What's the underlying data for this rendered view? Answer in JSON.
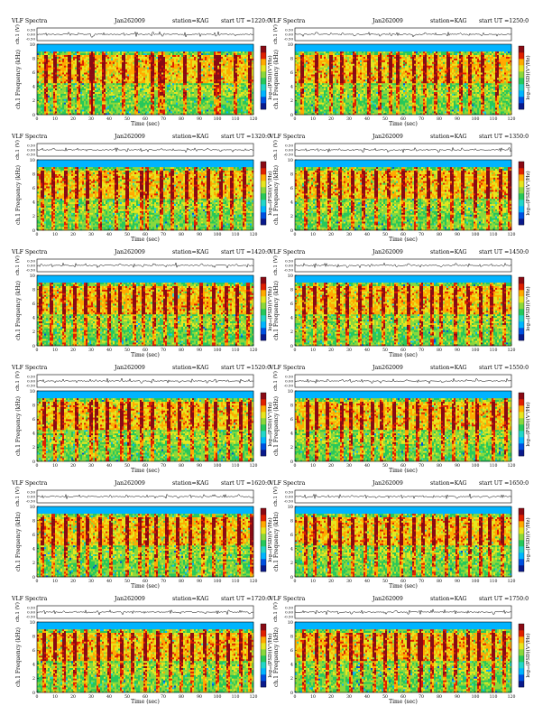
{
  "figure": {
    "layout": "6 rows x 2 columns of VLF spectrogram panels",
    "colormap": [
      "#0a1a8c",
      "#0050e0",
      "#00b4ff",
      "#23d6c8",
      "#27c85a",
      "#8ad83c",
      "#e6e61e",
      "#ffaa00",
      "#e02000",
      "#8a0a14"
    ]
  },
  "chart_data": [
    {
      "type": "heatmap",
      "title_left": "VLF Spectra",
      "date": "Jan262009",
      "station": "station=KAG",
      "start": "start UT =1220:0",
      "top_ylabel": "ch.1 (V)",
      "top_yticks": [
        "0.50",
        "0.00",
        "-0.50"
      ],
      "ylabel": "ch.1 Frequency (kHz)",
      "yticks": [
        0,
        2,
        4,
        6,
        8,
        10
      ],
      "ylim": [
        0,
        10
      ],
      "xlabel": "Time (sec)",
      "xticks": [
        0,
        10,
        20,
        30,
        40,
        50,
        60,
        70,
        80,
        90,
        100,
        110,
        120
      ],
      "xlim": [
        0,
        120
      ],
      "colorbar_label": "log₁₀(PSD)(V²/Hz)",
      "bursts": [
        5,
        10,
        18,
        23,
        30,
        31,
        37,
        48,
        55,
        64,
        68,
        70,
        82,
        90,
        99,
        101,
        110,
        118
      ]
    },
    {
      "type": "heatmap",
      "title_left": "VLF Spectra",
      "date": "Jan262009",
      "station": "station=KAG",
      "start": "start UT =1250:0",
      "top_ylabel": "ch.1 (V)",
      "top_yticks": [
        "0.50",
        "0.00",
        "-0.50"
      ],
      "ylabel": "ch.1 Frequency (kHz)",
      "yticks": [
        0,
        2,
        4,
        6,
        8,
        10
      ],
      "ylim": [
        0,
        10
      ],
      "xlabel": "Time (sec)",
      "xticks": [
        0,
        10,
        20,
        30,
        40,
        50,
        60,
        70,
        80,
        90,
        100,
        110,
        120
      ],
      "xlim": [
        0,
        120
      ],
      "colorbar_label": "log₁₀(PSD)(V²/Hz)",
      "bursts": [
        4,
        12,
        20,
        26,
        33,
        41,
        47,
        53,
        57,
        66,
        72,
        78,
        85,
        92,
        97,
        104,
        112
      ]
    },
    {
      "type": "heatmap",
      "title_left": "VLF Spectra",
      "date": "Jan262009",
      "station": "station=KAG",
      "start": "start UT =1320:0",
      "top_ylabel": "ch.1 (V)",
      "top_yticks": [
        "0.50",
        "0.00",
        "-0.50"
      ],
      "ylabel": "ch.1 Frequency (kHz)",
      "yticks": [
        0,
        2,
        4,
        6,
        8,
        10
      ],
      "ylim": [
        0,
        10
      ],
      "xlabel": "Time (sec)",
      "xticks": [
        0,
        10,
        20,
        30,
        40,
        50,
        60,
        70,
        80,
        90,
        100,
        110,
        120
      ],
      "xlim": [
        0,
        120
      ],
      "colorbar_label": "log₁₀(PSD)(V²/Hz)",
      "bursts": [
        3,
        9,
        16,
        22,
        28,
        35,
        44,
        50,
        58,
        61,
        69,
        75,
        83,
        88,
        95,
        102,
        108,
        115
      ]
    },
    {
      "type": "heatmap",
      "title_left": "VLF Spectra",
      "date": "Jan262009",
      "station": "station=KAG",
      "start": "start UT =1350:0",
      "top_ylabel": "ch.1 (V)",
      "top_yticks": [
        "0.50",
        "0.00",
        "-0.50"
      ],
      "ylabel": "ch.1 Frequency (kHz)",
      "yticks": [
        0,
        2,
        4,
        6,
        8,
        10
      ],
      "ylim": [
        0,
        10
      ],
      "xlabel": "Time (sec)",
      "xticks": [
        0,
        10,
        20,
        30,
        40,
        50,
        60,
        70,
        80,
        90,
        100,
        110,
        120
      ],
      "xlim": [
        0,
        120
      ],
      "colorbar_label": "log₁₀(PSD)(V²/Hz)",
      "bursts": [
        6,
        13,
        19,
        25,
        32,
        38,
        45,
        52,
        60,
        67,
        74,
        80,
        87,
        93,
        100,
        107,
        114,
        119
      ]
    },
    {
      "type": "heatmap",
      "title_left": "VLF Spectra",
      "date": "Jan262009",
      "station": "station=KAG",
      "start": "start UT =1420:0",
      "top_ylabel": "ch.1 (V)",
      "top_yticks": [
        "0.50",
        "0.00",
        "-0.50"
      ],
      "ylabel": "ch.1 Frequency (kHz)",
      "yticks": [
        0,
        2,
        4,
        6,
        8,
        10
      ],
      "ylim": [
        0,
        10
      ],
      "xlabel": "Time (sec)",
      "xticks": [
        0,
        10,
        20,
        30,
        40,
        50,
        60,
        70,
        80,
        90,
        100,
        110,
        120
      ],
      "xlim": [
        0,
        120
      ],
      "colorbar_label": "log₁₀(PSD)(V²/Hz)",
      "bursts": [
        2,
        8,
        15,
        21,
        27,
        34,
        40,
        46,
        54,
        59,
        65,
        71,
        77,
        84,
        91,
        98,
        105,
        111,
        117
      ]
    },
    {
      "type": "heatmap",
      "title_left": "VLF Spectra",
      "date": "Jan262009",
      "station": "station=KAG",
      "start": "start UT =1450:0",
      "top_ylabel": "ch.1 (V)",
      "top_yticks": [
        "0.50",
        "0.00",
        "-0.50"
      ],
      "ylabel": "ch.1 Frequency (kHz)",
      "yticks": [
        0,
        2,
        4,
        6,
        8,
        10
      ],
      "ylim": [
        0,
        10
      ],
      "xlabel": "Time (sec)",
      "xticks": [
        0,
        10,
        20,
        30,
        40,
        50,
        60,
        70,
        80,
        90,
        100,
        110,
        120
      ],
      "xlim": [
        0,
        120
      ],
      "colorbar_label": "log₁₀(PSD)(V²/Hz)",
      "bursts": [
        5,
        11,
        17,
        24,
        29,
        36,
        42,
        49,
        56,
        63,
        70,
        76,
        81,
        89,
        96,
        103,
        109,
        116
      ]
    },
    {
      "type": "heatmap",
      "title_left": "VLF Spectra",
      "date": "Jan262009",
      "station": "station=KAG",
      "start": "start UT =1520:0",
      "top_ylabel": "ch.1 (V)",
      "top_yticks": [
        "0.50",
        "0.00",
        "-0.50"
      ],
      "ylabel": "ch.1 Frequency (kHz)",
      "yticks": [
        0,
        2,
        4,
        6,
        8,
        10
      ],
      "ylim": [
        0,
        10
      ],
      "xlabel": "Time (sec)",
      "xticks": [
        0,
        10,
        20,
        30,
        40,
        50,
        60,
        70,
        80,
        90,
        100,
        110,
        120
      ],
      "xlim": [
        0,
        120
      ],
      "colorbar_label": "log₁₀(PSD)(V²/Hz)",
      "bursts": [
        4,
        10,
        14,
        22,
        30,
        33,
        39,
        47,
        51,
        58,
        64,
        73,
        79,
        86,
        94,
        99,
        106,
        113,
        118
      ]
    },
    {
      "type": "heatmap",
      "title_left": "VLF Spectra",
      "date": "Jan262009",
      "station": "station=KAG",
      "start": "start UT =1550:0",
      "top_ylabel": "ch.1 (V)",
      "top_yticks": [
        "0.50",
        "0.00",
        "-0.50"
      ],
      "ylabel": "ch.1 Frequency (kHz)",
      "yticks": [
        0,
        2,
        4,
        6,
        8,
        10
      ],
      "ylim": [
        0,
        10
      ],
      "xlabel": "Time (sec)",
      "xticks": [
        0,
        10,
        20,
        30,
        40,
        50,
        60,
        70,
        80,
        90,
        100,
        110,
        120
      ],
      "xlim": [
        0,
        120
      ],
      "colorbar_label": "log₁₀(PSD)(V²/Hz)",
      "bursts": [
        7,
        12,
        18,
        26,
        31,
        37,
        43,
        48,
        55,
        62,
        68,
        75,
        82,
        88,
        95,
        101,
        110,
        117
      ]
    },
    {
      "type": "heatmap",
      "title_left": "VLF Spectra",
      "date": "Jan262009",
      "station": "station=KAG",
      "start": "start UT =1620:0",
      "top_ylabel": "ch.1 (V)",
      "top_yticks": [
        "0.50",
        "0.00",
        "-0.50"
      ],
      "ylabel": "ch.1 Frequency (kHz)",
      "yticks": [
        0,
        2,
        4,
        6,
        8,
        10
      ],
      "ylim": [
        0,
        10
      ],
      "xlabel": "Time (sec)",
      "xticks": [
        0,
        10,
        20,
        30,
        40,
        50,
        60,
        70,
        80,
        90,
        100,
        110,
        120
      ],
      "xlim": [
        0,
        120
      ],
      "colorbar_label": "log₁₀(PSD)(V²/Hz)",
      "bursts": [
        3,
        9,
        16,
        23,
        28,
        35,
        41,
        50,
        57,
        61,
        66,
        72,
        78,
        85,
        92,
        98,
        104,
        112,
        119
      ]
    },
    {
      "type": "heatmap",
      "title_left": "VLF Spectra",
      "date": "Jan262009",
      "station": "station=KAG",
      "start": "start UT =1650:0",
      "top_ylabel": "ch.1 (V)",
      "top_yticks": [
        "0.50",
        "0.00",
        "-0.50"
      ],
      "ylabel": "ch.1 Frequency (kHz)",
      "yticks": [
        0,
        2,
        4,
        6,
        8,
        10
      ],
      "ylim": [
        0,
        10
      ],
      "xlabel": "Time (sec)",
      "xticks": [
        0,
        10,
        20,
        30,
        40,
        50,
        60,
        70,
        80,
        90,
        100,
        110,
        120
      ],
      "xlim": [
        0,
        120
      ],
      "colorbar_label": "log₁₀(PSD)(V²/Hz)",
      "bursts": [
        6,
        11,
        19,
        25,
        32,
        39,
        45,
        52,
        59,
        66,
        71,
        77,
        84,
        90,
        97,
        103,
        108,
        115
      ]
    },
    {
      "type": "heatmap",
      "title_left": "VLF Spectra",
      "date": "Jan262009",
      "station": "station=KAG",
      "start": "start UT =1720:0",
      "top_ylabel": "ch.1 (V)",
      "top_yticks": [
        "0.50",
        "0.00",
        "-0.50"
      ],
      "ylabel": "ch.1 Frequency (kHz)",
      "yticks": [
        0,
        2,
        4,
        6,
        8,
        10
      ],
      "ylim": [
        0,
        10
      ],
      "xlabel": "Time (sec)",
      "xticks": [
        0,
        10,
        20,
        30,
        40,
        50,
        60,
        70,
        80,
        90,
        100,
        110,
        120
      ],
      "xlim": [
        0,
        120
      ],
      "colorbar_label": "log₁₀(PSD)(V²/Hz)",
      "bursts": [
        4,
        10,
        15,
        21,
        27,
        34,
        40,
        47,
        53,
        60,
        67,
        74,
        80,
        86,
        93,
        100,
        106,
        113,
        118
      ]
    },
    {
      "type": "heatmap",
      "title_left": "VLF Spectra",
      "date": "Jan262009",
      "station": "station=KAG",
      "start": "start UT =1750:0",
      "top_ylabel": "ch.1 (V)",
      "top_yticks": [
        "0.50",
        "0.00",
        "-0.50"
      ],
      "ylabel": "ch.1 Frequency (kHz)",
      "yticks": [
        0,
        2,
        4,
        6,
        8,
        10
      ],
      "ylim": [
        0,
        10
      ],
      "xlabel": "Time (sec)",
      "xticks": [
        0,
        10,
        20,
        30,
        40,
        50,
        60,
        70,
        80,
        90,
        100,
        110,
        120
      ],
      "xlim": [
        0,
        120
      ],
      "colorbar_label": "log₁₀(PSD)(V²/Hz)",
      "bursts": [
        5,
        12,
        18,
        24,
        31,
        37,
        44,
        50,
        56,
        63,
        69,
        70,
        76,
        83,
        89,
        96,
        102,
        110,
        116
      ]
    }
  ]
}
